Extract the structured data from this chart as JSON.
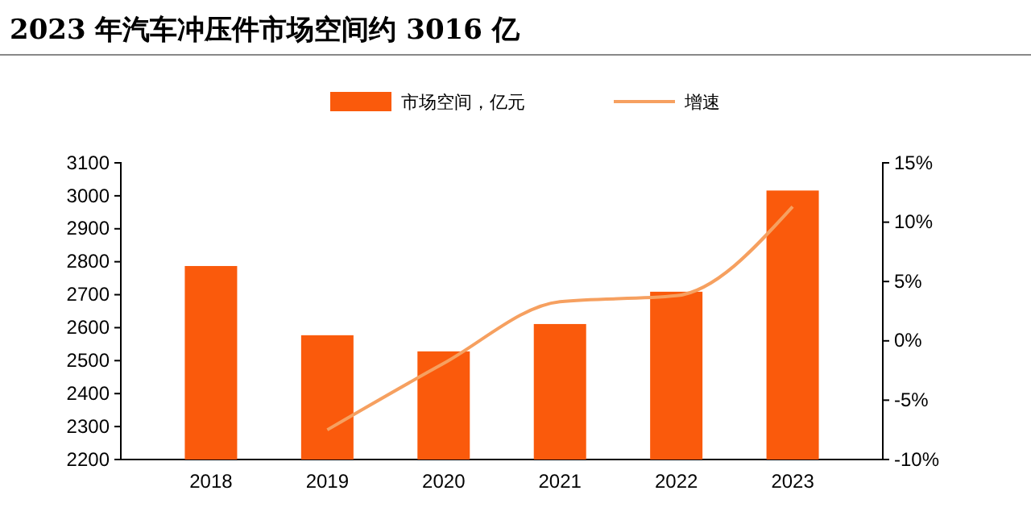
{
  "chart_data": {
    "type": "bar",
    "title": "2023 年汽车冲压件市场空间约 3016 亿",
    "categories": [
      "2018",
      "2019",
      "2020",
      "2021",
      "2022",
      "2023"
    ],
    "series": [
      {
        "name": "市场空间，亿元",
        "color": "#fa5a0c",
        "values": [
          2787,
          2577,
          2528,
          2611,
          2709,
          3016
        ]
      },
      {
        "name": "增速",
        "type": "line",
        "axis": "y2",
        "color": "#f6a060",
        "values": [
          null,
          -7.5,
          -1.9,
          3.3,
          3.8,
          11.3
        ]
      }
    ],
    "ylim": [
      2200,
      3100
    ],
    "yticks": [
      2200,
      2300,
      2400,
      2500,
      2600,
      2700,
      2800,
      2900,
      3000,
      3100
    ],
    "y2lim": [
      -10,
      15
    ],
    "y2ticks": [
      {
        "value": -10,
        "label": "-10%"
      },
      {
        "value": -5,
        "label": "-5%"
      },
      {
        "value": 0,
        "label": "0%"
      },
      {
        "value": 5,
        "label": "5%"
      },
      {
        "value": 10,
        "label": "10%"
      },
      {
        "value": 15,
        "label": "15%"
      }
    ],
    "legend": "top",
    "grid": false
  }
}
